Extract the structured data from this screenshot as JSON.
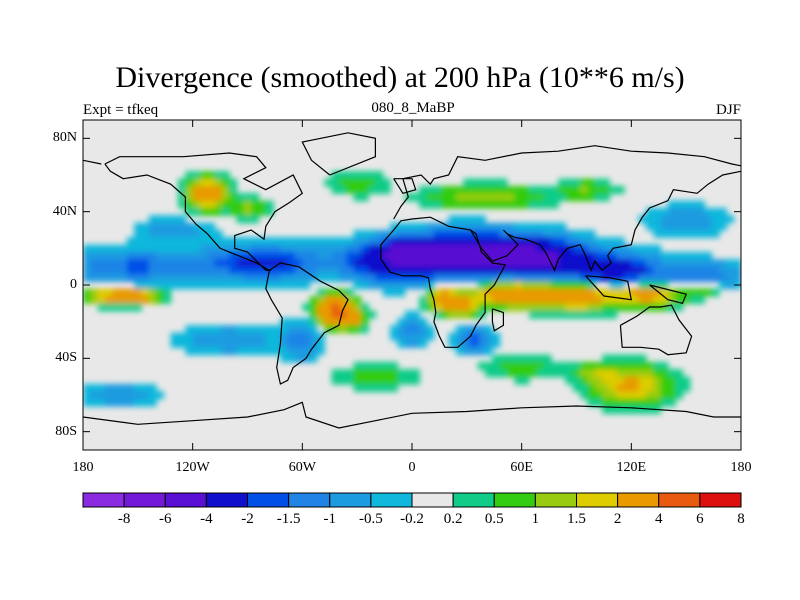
{
  "title": "Divergence (smoothed) at 200 hPa (10**6 m/s)",
  "left_label": "Expt = tfkeq",
  "center_label": "080_8_MaBP",
  "right_label": "DJF",
  "chart_data": {
    "type": "heatmap",
    "title": "Divergence (smoothed) at 200 hPa (10**6 m/s)",
    "subtitle": "080_8_MaBP",
    "projection": "cylindrical equidistant",
    "field": "200 hPa smoothed divergence",
    "x_range": [
      -180,
      180
    ],
    "y_range": [
      -90,
      90
    ],
    "x_ticks": [
      {
        "value": -180,
        "label": "180"
      },
      {
        "value": -120,
        "label": "120W"
      },
      {
        "value": -60,
        "label": "60W"
      },
      {
        "value": 0,
        "label": "0"
      },
      {
        "value": 60,
        "label": "60E"
      },
      {
        "value": 120,
        "label": "120E"
      },
      {
        "value": 180,
        "label": "180"
      }
    ],
    "y_ticks": [
      {
        "value": 80,
        "label": "80N"
      },
      {
        "value": 40,
        "label": "40N"
      },
      {
        "value": 0,
        "label": "0"
      },
      {
        "value": -40,
        "label": "40S"
      },
      {
        "value": -80,
        "label": "80S"
      }
    ],
    "colorbar": {
      "levels": [
        "-8",
        "-6",
        "-4",
        "-2",
        "-1.5",
        "-1",
        "-0.5",
        "-0.2",
        "0.2",
        "0.5",
        "1",
        "1.5",
        "2",
        "4",
        "6",
        "8"
      ],
      "colors": [
        "#8a2be2",
        "#7318d8",
        "#5a10d2",
        "#1010cc",
        "#0050e8",
        "#1f84e6",
        "#1c9be0",
        "#10b8dc",
        "#e8e8e8",
        "#10cc88",
        "#33cc10",
        "#99cc10",
        "#ddcc00",
        "#e89a00",
        "#e85a10",
        "#dd1010"
      ]
    },
    "features": [
      {
        "type": "neg",
        "lon_range": [
          -180,
          180
        ],
        "lat_range": [
          0,
          30
        ],
        "peak": -4,
        "note": "strong convergence band across tropics north of equator, strongest from 20W to 100E"
      },
      {
        "type": "pos",
        "lon_range": [
          30,
          170
        ],
        "lat_range": [
          -20,
          5
        ],
        "peak": 4,
        "note": "divergence band over Indian Ocean and maritime continent"
      },
      {
        "type": "pos",
        "lon_range": [
          -180,
          -135
        ],
        "lat_range": [
          -10,
          -3
        ],
        "peak": 4
      },
      {
        "type": "pos",
        "lon_range": [
          -55,
          -30
        ],
        "lat_range": [
          -25,
          -5
        ],
        "peak": 4,
        "note": "South America"
      },
      {
        "type": "pos",
        "lon_range": [
          8,
          40
        ],
        "lat_range": [
          -15,
          -2
        ],
        "peak": 4,
        "note": "Africa"
      },
      {
        "type": "pos",
        "lon_range": [
          -140,
          -75
        ],
        "lat_range": [
          40,
          60
        ],
        "peak": 2
      },
      {
        "type": "pos",
        "lon_range": [
          -20,
          110
        ],
        "lat_range": [
          40,
          55
        ],
        "peak": 1
      },
      {
        "type": "pos",
        "lon_range": [
          85,
          150
        ],
        "lat_range": [
          -70,
          -40
        ],
        "peak": 2
      }
    ]
  }
}
